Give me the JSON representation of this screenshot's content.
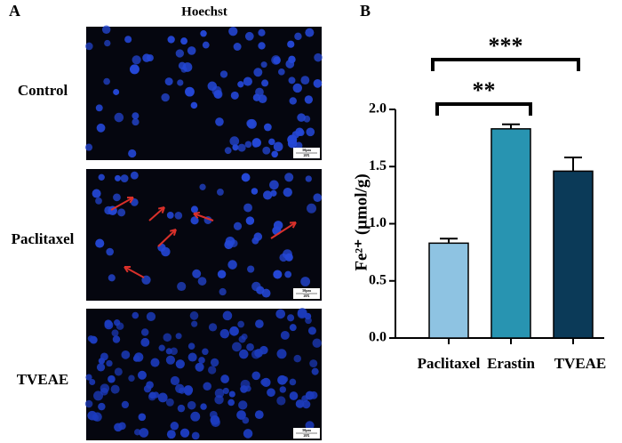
{
  "panel_a": {
    "label": "A",
    "stain": "Hoechst",
    "rows": [
      "Control",
      "Paclitaxel",
      "TVEAE"
    ],
    "scale_bar": [
      "50μm",
      "20X"
    ]
  },
  "panel_b": {
    "label": "B"
  },
  "chart_data": {
    "type": "bar",
    "y_label": "Fe²⁺ (μmol/g)",
    "categories": [
      "Paclitaxel",
      "Erastin",
      "TVEAE"
    ],
    "values": [
      0.83,
      1.83,
      1.46
    ],
    "errors": [
      0.04,
      0.04,
      0.12
    ],
    "colors": [
      "#8ec3e2",
      "#2894b1",
      "#0b3a58"
    ],
    "ylim": [
      0,
      2.0
    ],
    "yticks": [
      {
        "value": 0,
        "label": "0.0"
      },
      {
        "value": 0.5,
        "label": "0.5"
      },
      {
        "value": 1,
        "label": "1.0"
      },
      {
        "value": 1.5,
        "label": "1.5"
      },
      {
        "value": 2,
        "label": "2.0"
      }
    ],
    "annotations": [
      {
        "text": "**"
      },
      {
        "text": "***"
      }
    ]
  }
}
